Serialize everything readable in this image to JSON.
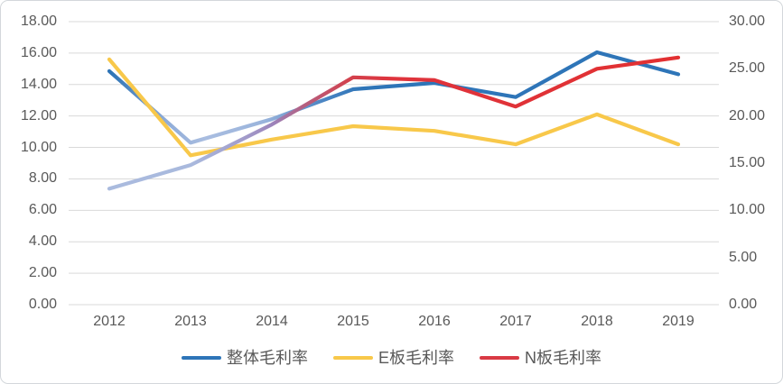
{
  "chart_data": {
    "type": "line",
    "title": "",
    "categories": [
      "2012",
      "2013",
      "2014",
      "2015",
      "2016",
      "2017",
      "2018",
      "2019"
    ],
    "series": [
      {
        "name": "整体毛利率",
        "axis": "left",
        "color": "#2E75B8",
        "fade_color": "#A9BDE0",
        "values": [
          14.85,
          10.3,
          11.8,
          13.7,
          14.1,
          13.2,
          16.05,
          14.65
        ]
      },
      {
        "name": "E板毛利率",
        "axis": "left",
        "color": "#F8C84A",
        "values": [
          15.6,
          9.5,
          10.5,
          11.35,
          11.05,
          10.2,
          12.1,
          10.2
        ]
      },
      {
        "name": "N板毛利率",
        "axis": "right",
        "color": "#E23030",
        "fade_color": "#AABCDF",
        "values": [
          12.3,
          14.8,
          19.1,
          24.1,
          23.8,
          21.0,
          25.0,
          26.2
        ]
      }
    ],
    "left_axis": {
      "min": 0,
      "max": 18,
      "ticks": [
        "18.00",
        "16.00",
        "14.00",
        "12.00",
        "10.00",
        "8.00",
        "6.00",
        "4.00",
        "2.00",
        "0.00"
      ]
    },
    "right_axis": {
      "min": 0,
      "max": 30,
      "ticks": [
        "30.00",
        "25.00",
        "20.00",
        "15.00",
        "10.00",
        "5.00",
        "0.00"
      ]
    },
    "grid": true,
    "legend_position": "bottom",
    "gridline_color": "#D9D9D9",
    "tick_color": "#595959"
  }
}
